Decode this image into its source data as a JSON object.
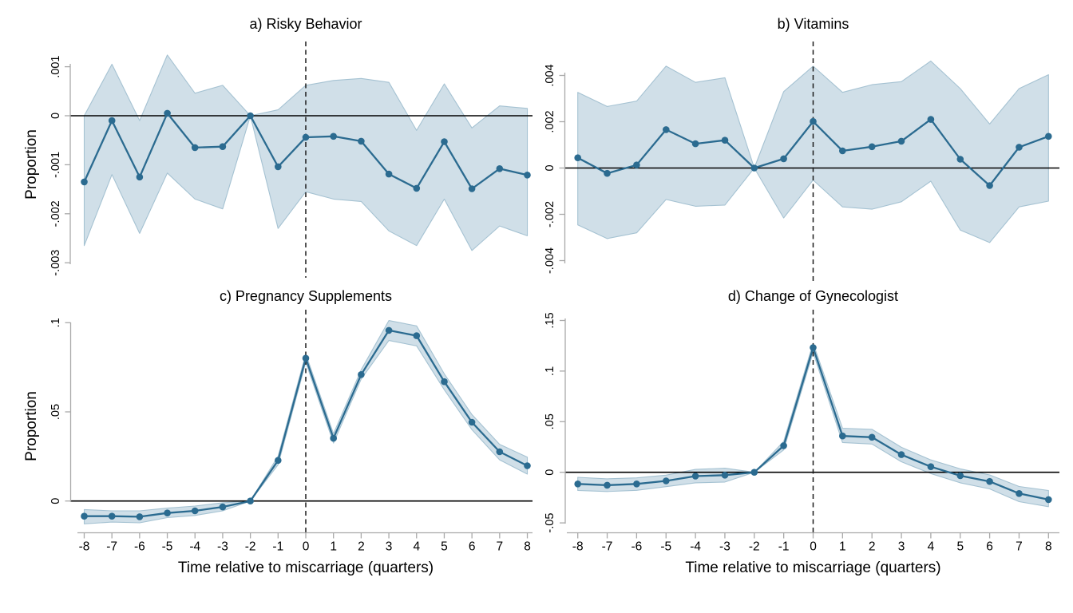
{
  "figure": {
    "background": "#ffffff",
    "ylabel": "Proportion",
    "xlabel": "Time relative to miscarriage (quarters)"
  },
  "style": {
    "line_color": "#2b6b90",
    "marker_color": "#2b6b90",
    "ci_fill": "#d0dfe8",
    "ci_edge": "#a5c2d2",
    "zero_line_color": "#000000",
    "event_line_color": "#1a1a1a",
    "axis_color": "#a9a9a9",
    "text_color": "#000000"
  },
  "chart_data": [
    {
      "type": "line",
      "panel": "a",
      "title": "a) Risky Behavior",
      "ylabel": "Proportion",
      "xlabel": null,
      "x": [
        -8,
        -7,
        -6,
        -5,
        -4,
        -3,
        -2,
        -1,
        0,
        1,
        2,
        3,
        4,
        5,
        6,
        7,
        8
      ],
      "series": [
        {
          "name": "estimate",
          "values": [
            -0.00135,
            -0.0001,
            -0.00125,
            5e-05,
            -0.00065,
            -0.00063,
            0,
            -0.00104,
            -0.00044,
            -0.00042,
            -0.00052,
            -0.00119,
            -0.00148,
            -0.00053,
            -0.00149,
            -0.00108,
            -0.00121
          ]
        }
      ],
      "ci_upper": [
        0.0,
        0.00105,
        -0.0001,
        0.00124,
        0.00046,
        0.00062,
        0,
        0.00012,
        0.00062,
        0.00072,
        0.00076,
        0.00068,
        -0.0003,
        0.00065,
        -0.00025,
        0.0002,
        0.00015
      ],
      "ci_lower": [
        -0.00265,
        -0.0012,
        -0.0024,
        -0.00117,
        -0.0017,
        -0.0019,
        0,
        -0.0023,
        -0.00155,
        -0.0017,
        -0.00175,
        -0.00235,
        -0.00265,
        -0.0017,
        -0.00275,
        -0.00225,
        -0.00245
      ],
      "yticks": {
        "values": [
          0.001,
          0,
          -0.001,
          -0.002,
          -0.003
        ],
        "labels": [
          ".001",
          "0",
          "-.001",
          "-.002",
          "-.003"
        ]
      },
      "xticks": null,
      "ylim": [
        -0.0031,
        0.0014
      ],
      "hline_y": 0,
      "vline_x": 0,
      "legend": "none",
      "grid": false
    },
    {
      "type": "line",
      "panel": "b",
      "title": "b) Vitamins",
      "ylabel": null,
      "xlabel": null,
      "x": [
        -8,
        -7,
        -6,
        -5,
        -4,
        -3,
        -2,
        -1,
        0,
        1,
        2,
        3,
        4,
        5,
        6,
        7,
        8
      ],
      "series": [
        {
          "name": "estimate",
          "values": [
            0.00044,
            -0.00023,
            0.00013,
            0.00166,
            0.00105,
            0.0012,
            0,
            0.0004,
            0.00201,
            0.00074,
            0.00092,
            0.00116,
            0.0021,
            0.00038,
            -0.00076,
            0.0009,
            0.00137
          ]
        }
      ],
      "ci_upper": [
        0.00327,
        0.00266,
        0.00289,
        0.0044,
        0.0037,
        0.0039,
        0,
        0.0033,
        0.0044,
        0.00327,
        0.0036,
        0.00373,
        0.00462,
        0.00343,
        0.0019,
        0.00343,
        0.00403
      ],
      "ci_lower": [
        -0.00246,
        -0.00305,
        -0.0028,
        -0.00136,
        -0.00165,
        -0.0016,
        0,
        -0.00216,
        -0.00052,
        -0.00168,
        -0.00178,
        -0.00146,
        -0.00057,
        -0.00268,
        -0.00322,
        -0.00168,
        -0.00143
      ],
      "yticks": {
        "values": [
          0.004,
          0.002,
          0,
          -0.002,
          -0.004
        ],
        "labels": [
          ".004",
          ".002",
          "0",
          "-.002",
          "-.004"
        ]
      },
      "xticks": null,
      "ylim": [
        -0.0045,
        0.0048
      ],
      "hline_y": 0,
      "vline_x": 0,
      "legend": "none",
      "grid": false
    },
    {
      "type": "line",
      "panel": "c",
      "title": "c) Pregnancy Supplements",
      "ylabel": "Proportion",
      "xlabel": "Time relative to miscarriage (quarters)",
      "x": [
        -8,
        -7,
        -6,
        -5,
        -4,
        -3,
        -2,
        -1,
        0,
        1,
        2,
        3,
        4,
        5,
        6,
        7,
        8
      ],
      "series": [
        {
          "name": "estimate",
          "values": [
            -0.0085,
            -0.0085,
            -0.0088,
            -0.0067,
            -0.0055,
            -0.0033,
            0,
            0.0228,
            0.0801,
            0.0352,
            0.0709,
            0.0957,
            0.0927,
            0.0669,
            0.0442,
            0.0276,
            0.0198
          ]
        }
      ],
      "ci_upper": [
        -0.0048,
        -0.0055,
        -0.0055,
        -0.004,
        -0.0028,
        -0.001,
        0,
        0.0251,
        0.0825,
        0.0378,
        0.0736,
        0.1012,
        0.0982,
        0.0713,
        0.0485,
        0.0318,
        0.0246
      ],
      "ci_lower": [
        -0.0128,
        -0.0118,
        -0.0122,
        -0.0093,
        -0.0081,
        -0.0055,
        0,
        0.0203,
        0.0778,
        0.0325,
        0.0684,
        0.09,
        0.087,
        0.0624,
        0.04,
        0.0231,
        0.0151
      ],
      "yticks": {
        "values": [
          0.1,
          0.05,
          0
        ],
        "labels": [
          ".1",
          ".05",
          "0"
        ]
      },
      "xticks": {
        "values": [
          -8,
          -7,
          -6,
          -5,
          -4,
          -3,
          -2,
          -1,
          0,
          1,
          2,
          3,
          4,
          5,
          6,
          7,
          8
        ],
        "labels": [
          "-8",
          "-7",
          "-6",
          "-5",
          "-4",
          "-3",
          "-2",
          "-1",
          "0",
          "1",
          "2",
          "3",
          "4",
          "5",
          "6",
          "7",
          "8"
        ]
      },
      "ylim": [
        -0.014,
        0.103
      ],
      "hline_y": 0,
      "vline_x": 0,
      "legend": "none",
      "grid": false
    },
    {
      "type": "line",
      "panel": "d",
      "title": "d) Change of Gynecologist",
      "ylabel": null,
      "xlabel": "Time relative to miscarriage (quarters)",
      "x": [
        -8,
        -7,
        -6,
        -5,
        -4,
        -3,
        -2,
        -1,
        0,
        1,
        2,
        3,
        4,
        5,
        6,
        7,
        8
      ],
      "series": [
        {
          "name": "estimate",
          "values": [
            -0.0115,
            -0.0128,
            -0.0115,
            -0.0085,
            -0.0038,
            -0.0028,
            0,
            0.0263,
            0.1232,
            0.0359,
            0.0346,
            0.0174,
            0.0055,
            -0.0034,
            -0.0091,
            -0.021,
            -0.027
          ]
        }
      ],
      "ci_upper": [
        -0.005,
        -0.0065,
        -0.0055,
        -0.0028,
        0.0028,
        0.004,
        0,
        0.0305,
        0.1276,
        0.0435,
        0.0424,
        0.0247,
        0.0122,
        0.0034,
        -0.0026,
        -0.014,
        -0.018
      ],
      "ci_lower": [
        -0.018,
        -0.019,
        -0.0178,
        -0.0142,
        -0.0104,
        -0.0096,
        0,
        0.0221,
        0.1185,
        0.0294,
        0.0279,
        0.0104,
        -0.0013,
        -0.0104,
        -0.0164,
        -0.029,
        -0.034
      ],
      "yticks": {
        "values": [
          0.15,
          0.1,
          0.05,
          0,
          -0.05
        ],
        "labels": [
          ".15",
          ".1",
          ".05",
          "0",
          "-.05"
        ]
      },
      "xticks": {
        "values": [
          -8,
          -7,
          -6,
          -5,
          -4,
          -3,
          -2,
          -1,
          0,
          1,
          2,
          3,
          4,
          5,
          6,
          7,
          8
        ],
        "labels": [
          "-8",
          "-7",
          "-6",
          "-5",
          "-4",
          "-3",
          "-2",
          "-1",
          "0",
          "1",
          "2",
          "3",
          "4",
          "5",
          "6",
          "7",
          "8"
        ]
      },
      "ylim": [
        -0.036,
        0.13
      ],
      "hline_y": 0,
      "vline_x": 0,
      "legend": "none",
      "grid": false
    }
  ]
}
